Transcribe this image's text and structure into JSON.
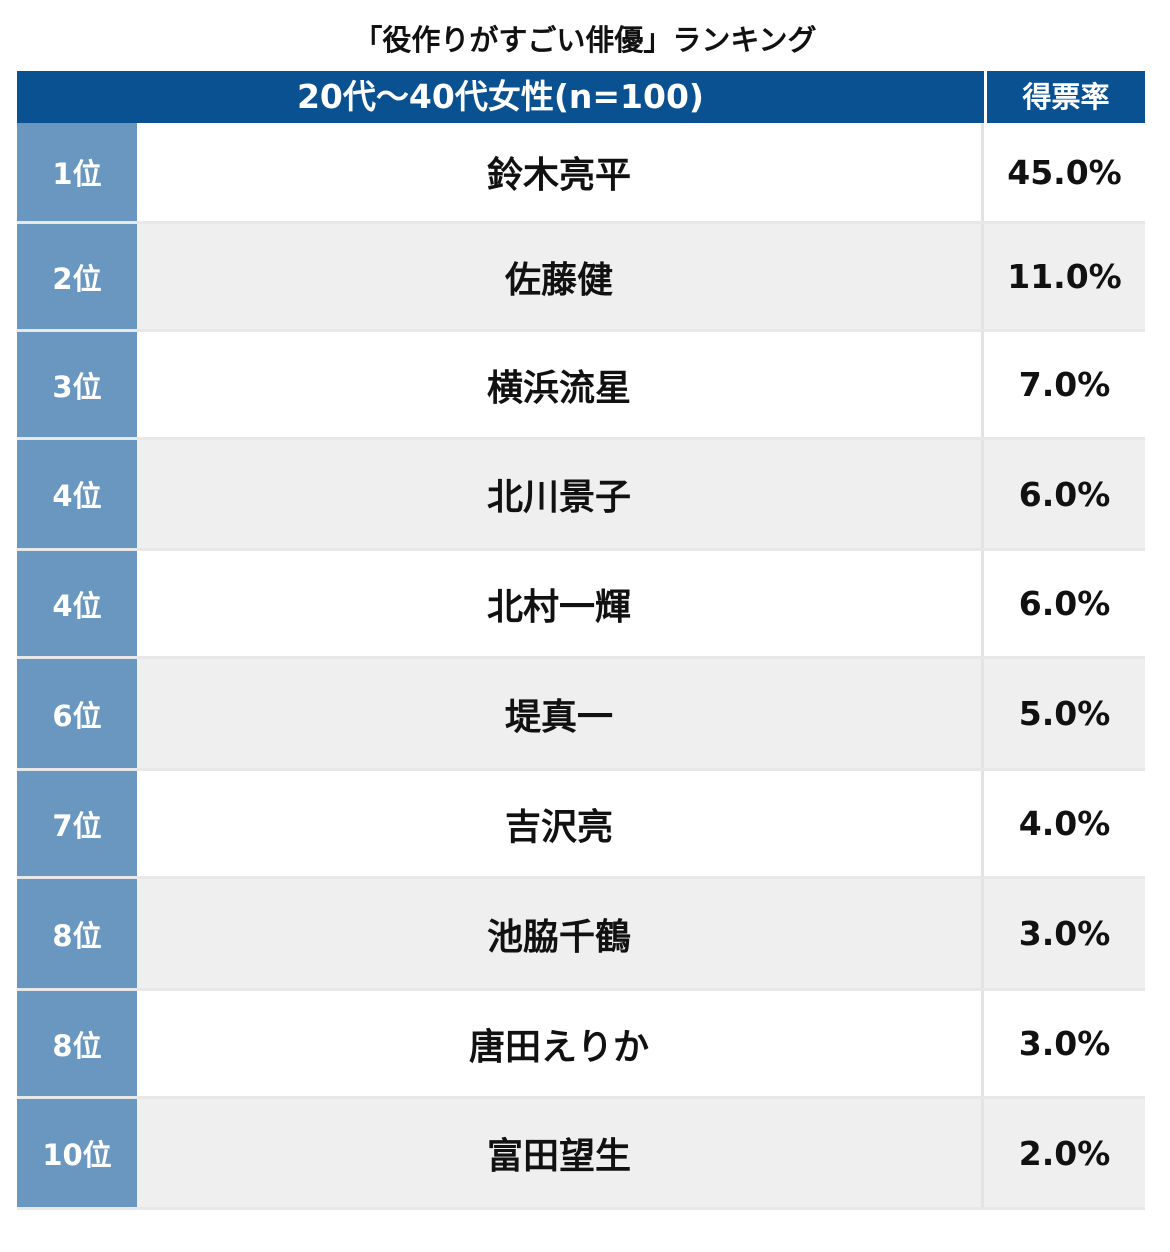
{
  "chart_data": {
    "type": "table",
    "title": "「役作りがすごい俳優」ランキング",
    "header": {
      "main": "20代〜40代女性(n=100)",
      "rate": "得票率"
    },
    "rows": [
      {
        "rank": "1位",
        "name": "鈴木亮平",
        "rate": "45.0%"
      },
      {
        "rank": "2位",
        "name": "佐藤健",
        "rate": "11.0%"
      },
      {
        "rank": "3位",
        "name": "横浜流星",
        "rate": "7.0%"
      },
      {
        "rank": "4位",
        "name": "北川景子",
        "rate": "6.0%"
      },
      {
        "rank": "4位",
        "name": "北村一輝",
        "rate": "6.0%"
      },
      {
        "rank": "6位",
        "name": "堤真一",
        "rate": "5.0%"
      },
      {
        "rank": "7位",
        "name": "吉沢亮",
        "rate": "4.0%"
      },
      {
        "rank": "8位",
        "name": "池脇千鶴",
        "rate": "3.0%"
      },
      {
        "rank": "8位",
        "name": "唐田えりか",
        "rate": "3.0%"
      },
      {
        "rank": "10位",
        "name": "富田望生",
        "rate": "2.0%"
      }
    ],
    "colors": {
      "header_bg": "#0a5192",
      "rank_bg": "#6a97bf",
      "alt_row_bg": "#efefef"
    }
  }
}
